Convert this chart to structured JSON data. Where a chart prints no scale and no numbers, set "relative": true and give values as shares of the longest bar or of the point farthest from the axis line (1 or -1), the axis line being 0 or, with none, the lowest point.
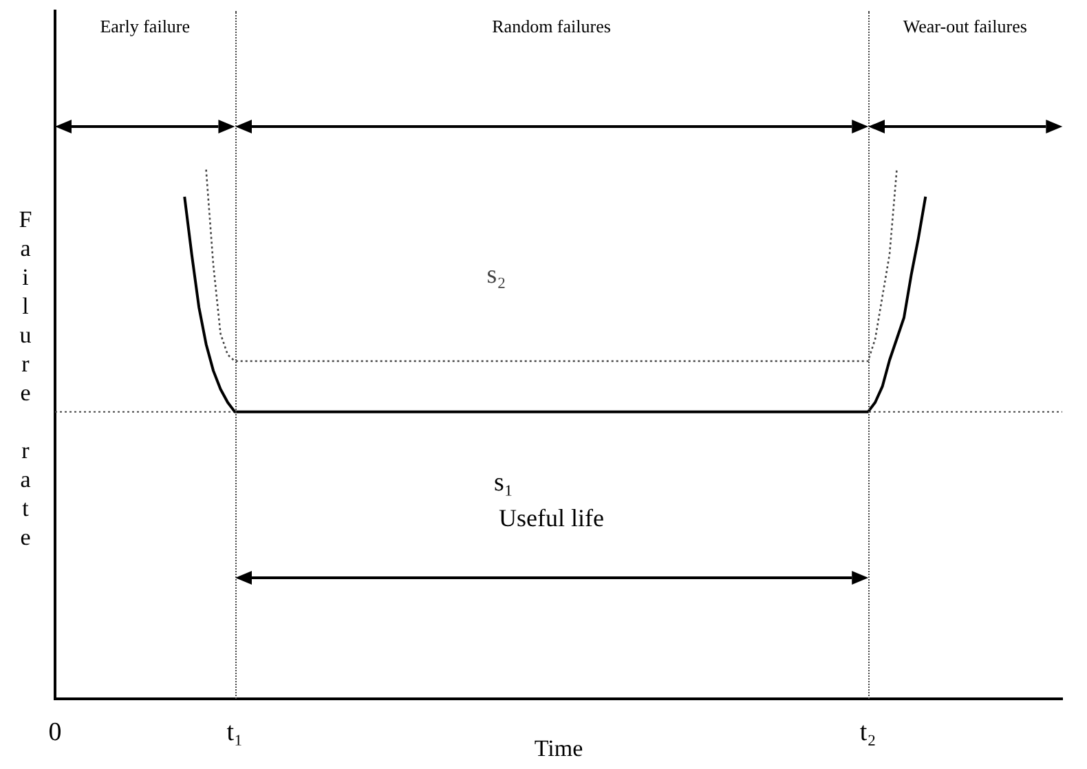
{
  "chart_data": {
    "type": "line",
    "relative": true,
    "xlabel": "Time",
    "ylabel": "Failure rate",
    "categories": [
      "0",
      null,
      null,
      null,
      null,
      null,
      null,
      null,
      null,
      null,
      null,
      null,
      null,
      null,
      null,
      null,
      null,
      null,
      null,
      null,
      null,
      null,
      null,
      null,
      null,
      "t₁",
      null,
      null,
      null,
      null,
      null,
      null,
      null,
      null,
      null,
      null,
      null,
      null,
      null,
      null,
      null,
      null,
      null,
      null,
      null,
      null,
      null,
      null,
      null,
      null,
      null,
      null,
      null,
      null,
      null,
      null,
      null,
      null,
      null,
      null,
      null,
      null,
      null,
      null,
      null,
      null,
      null,
      null,
      null,
      null,
      null,
      null,
      null,
      null,
      null,
      null,
      null,
      null,
      null,
      null,
      null,
      null,
      null,
      null,
      null,
      null,
      null,
      null,
      null,
      null,
      null,
      null,
      null,
      null,
      null,
      null,
      null,
      null,
      null,
      null,
      null,
      null,
      null,
      null,
      null,
      null,
      null,
      null,
      null,
      null,
      null,
      null,
      null,
      "t₂",
      null,
      null,
      null,
      null,
      null,
      null,
      null,
      null,
      null,
      null,
      null,
      null,
      null,
      null,
      null,
      null,
      null,
      null,
      null,
      null,
      null,
      null,
      null,
      null,
      null,
      null,
      null
    ],
    "series": [
      {
        "name": "s₁",
        "color": "#000000",
        "line_style": "solid",
        "values": [
          null,
          null,
          null,
          null,
          null,
          null,
          null,
          null,
          null,
          null,
          null,
          null,
          null,
          null,
          null,
          null,
          null,
          null,
          0.949,
          0.84,
          0.74,
          0.67,
          0.62,
          0.585,
          0.56,
          0.542,
          0.542,
          0.542,
          0.542,
          0.542,
          0.542,
          0.542,
          0.542,
          0.542,
          0.542,
          0.542,
          0.542,
          0.542,
          0.542,
          0.542,
          0.542,
          0.542,
          0.542,
          0.542,
          0.542,
          0.542,
          0.542,
          0.542,
          0.542,
          0.542,
          0.542,
          0.542,
          0.542,
          0.542,
          0.542,
          0.542,
          0.542,
          0.542,
          0.542,
          0.542,
          0.542,
          0.542,
          0.542,
          0.542,
          0.542,
          0.542,
          0.542,
          0.542,
          0.542,
          0.542,
          0.542,
          0.542,
          0.542,
          0.542,
          0.542,
          0.542,
          0.542,
          0.542,
          0.542,
          0.542,
          0.542,
          0.542,
          0.542,
          0.542,
          0.542,
          0.542,
          0.542,
          0.542,
          0.542,
          0.542,
          0.542,
          0.542,
          0.542,
          0.542,
          0.542,
          0.542,
          0.542,
          0.542,
          0.542,
          0.542,
          0.542,
          0.542,
          0.542,
          0.542,
          0.542,
          0.542,
          0.542,
          0.542,
          0.542,
          0.542,
          0.542,
          0.542,
          0.542,
          0.542,
          0.56,
          0.59,
          0.64,
          0.68,
          0.72,
          0.8,
          0.87,
          0.949,
          null,
          null,
          null,
          null,
          null,
          null,
          null,
          null,
          null,
          null,
          null,
          null,
          null,
          null,
          null,
          null,
          null,
          null,
          null
        ]
      },
      {
        "name": "s₂",
        "color": "#444444",
        "line_style": "dotted",
        "values": [
          null,
          null,
          null,
          null,
          null,
          null,
          null,
          null,
          null,
          null,
          null,
          null,
          null,
          null,
          null,
          null,
          null,
          null,
          null,
          null,
          null,
          1.0,
          0.82,
          0.69,
          0.65,
          0.638,
          0.638,
          0.638,
          0.638,
          0.638,
          0.638,
          0.638,
          0.638,
          0.638,
          0.638,
          0.638,
          0.638,
          0.638,
          0.638,
          0.638,
          0.638,
          0.638,
          0.638,
          0.638,
          0.638,
          0.638,
          0.638,
          0.638,
          0.638,
          0.638,
          0.638,
          0.638,
          0.638,
          0.638,
          0.638,
          0.638,
          0.638,
          0.638,
          0.638,
          0.638,
          0.638,
          0.638,
          0.638,
          0.638,
          0.638,
          0.638,
          0.638,
          0.638,
          0.638,
          0.638,
          0.638,
          0.638,
          0.638,
          0.638,
          0.638,
          0.638,
          0.638,
          0.638,
          0.638,
          0.638,
          0.638,
          0.638,
          0.638,
          0.638,
          0.638,
          0.638,
          0.638,
          0.638,
          0.638,
          0.638,
          0.638,
          0.638,
          0.638,
          0.638,
          0.638,
          0.638,
          0.638,
          0.638,
          0.638,
          0.638,
          0.638,
          0.638,
          0.638,
          0.638,
          0.638,
          0.638,
          0.638,
          0.638,
          0.638,
          0.638,
          0.638,
          0.638,
          0.638,
          0.638,
          0.68,
          0.76,
          0.84,
          1.0,
          null,
          null,
          null,
          null,
          null,
          null,
          null,
          null,
          null,
          null,
          null,
          null,
          null,
          null,
          null,
          null,
          null,
          null,
          null,
          null,
          null,
          null,
          null
        ]
      }
    ],
    "ref_lines": [
      {
        "axis": "y",
        "value": 0.542,
        "line_style": "dotted",
        "color": "#444444"
      }
    ],
    "annotations": [
      "Early failure",
      "Random failures",
      "Wear-out failures",
      "Useful life"
    ],
    "grid": false,
    "legend": false,
    "marker": "none"
  }
}
